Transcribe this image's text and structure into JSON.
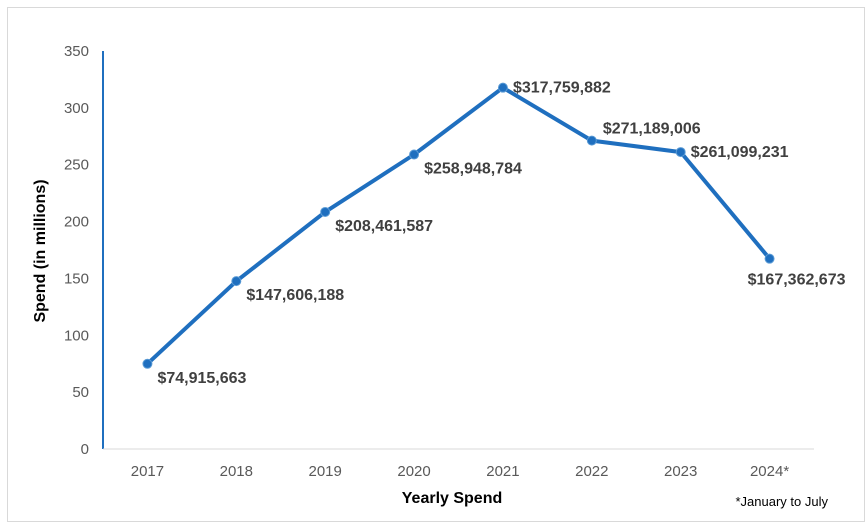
{
  "chart_data": {
    "type": "line",
    "title": "",
    "xlabel": "Yearly Spend",
    "ylabel": "Spend (in millions)",
    "ylim": [
      0,
      350
    ],
    "yticks": [
      0,
      50,
      100,
      150,
      200,
      250,
      300,
      350
    ],
    "categories": [
      "2017",
      "2018",
      "2019",
      "2020",
      "2021",
      "2022",
      "2023",
      "2024*"
    ],
    "series": [
      {
        "values": [
          74.915663,
          147.606188,
          208.461587,
          258.948784,
          317.759882,
          271.189006,
          261.099231,
          167.362673
        ],
        "data_labels": [
          "$74,915,663",
          "$147,606,188",
          "$208,461,587",
          "$258,948,784",
          "$317,759,882",
          "$271,189,006",
          "$261,099,231",
          "$167,362,673"
        ],
        "color": "#1f6fbf"
      }
    ],
    "grid": false,
    "footnote": "*January to July"
  }
}
